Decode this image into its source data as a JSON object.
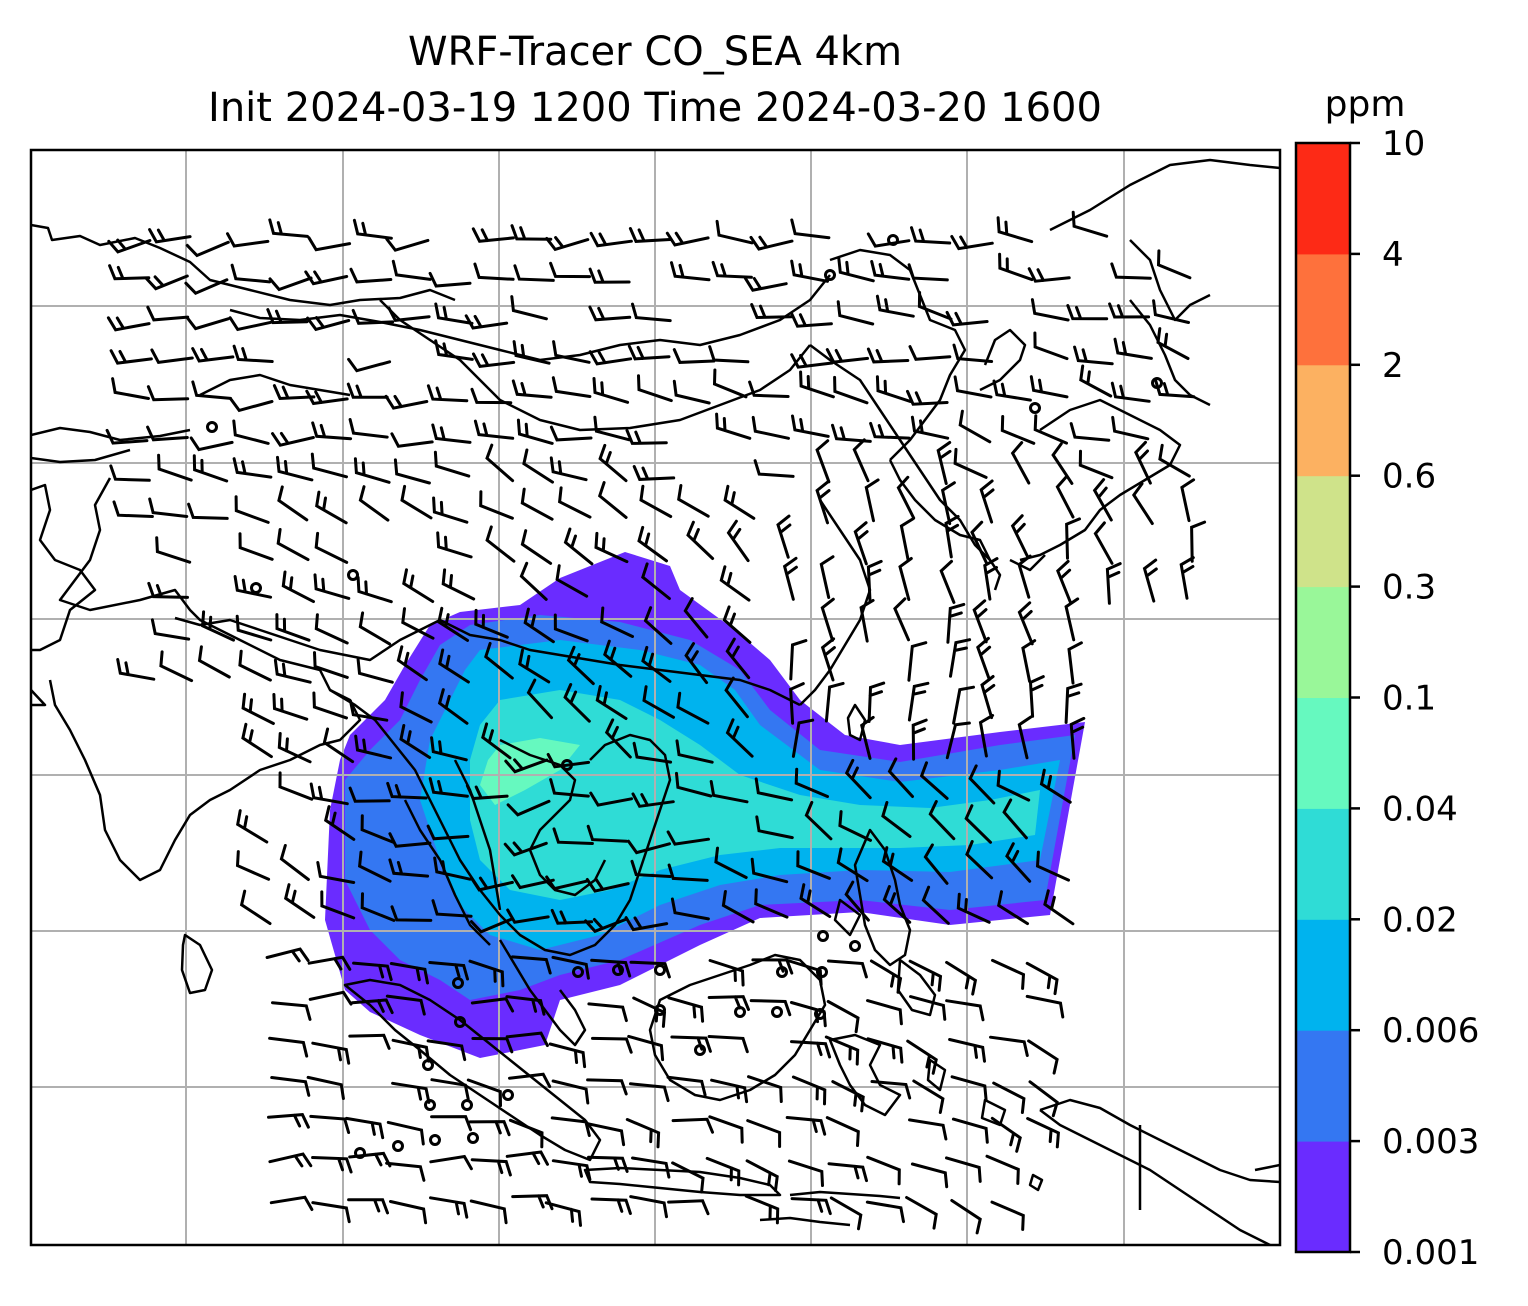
{
  "title": {
    "line1": "WRF-Tracer CO_SEA 4km",
    "line2": "Init 2024-03-19 1200 Time 2024-03-20 1600"
  },
  "colorbar": {
    "unit": "ppm",
    "levels": [
      "0.001",
      "0.003",
      "0.006",
      "0.02",
      "0.04",
      "0.1",
      "0.3",
      "0.6",
      "2",
      "4",
      "10"
    ],
    "colors": [
      "#6a2cff",
      "#3477f2",
      "#00b3ee",
      "#2fdcd6",
      "#66f9bf",
      "#99f799",
      "#cfe38a",
      "#fcb161",
      "#fe713c",
      "#fd2a16"
    ]
  },
  "map": {
    "gridlines": true,
    "gridline_color": "#b0b0b0",
    "coastline_color": "#000000",
    "barb_color": "#000000"
  }
}
